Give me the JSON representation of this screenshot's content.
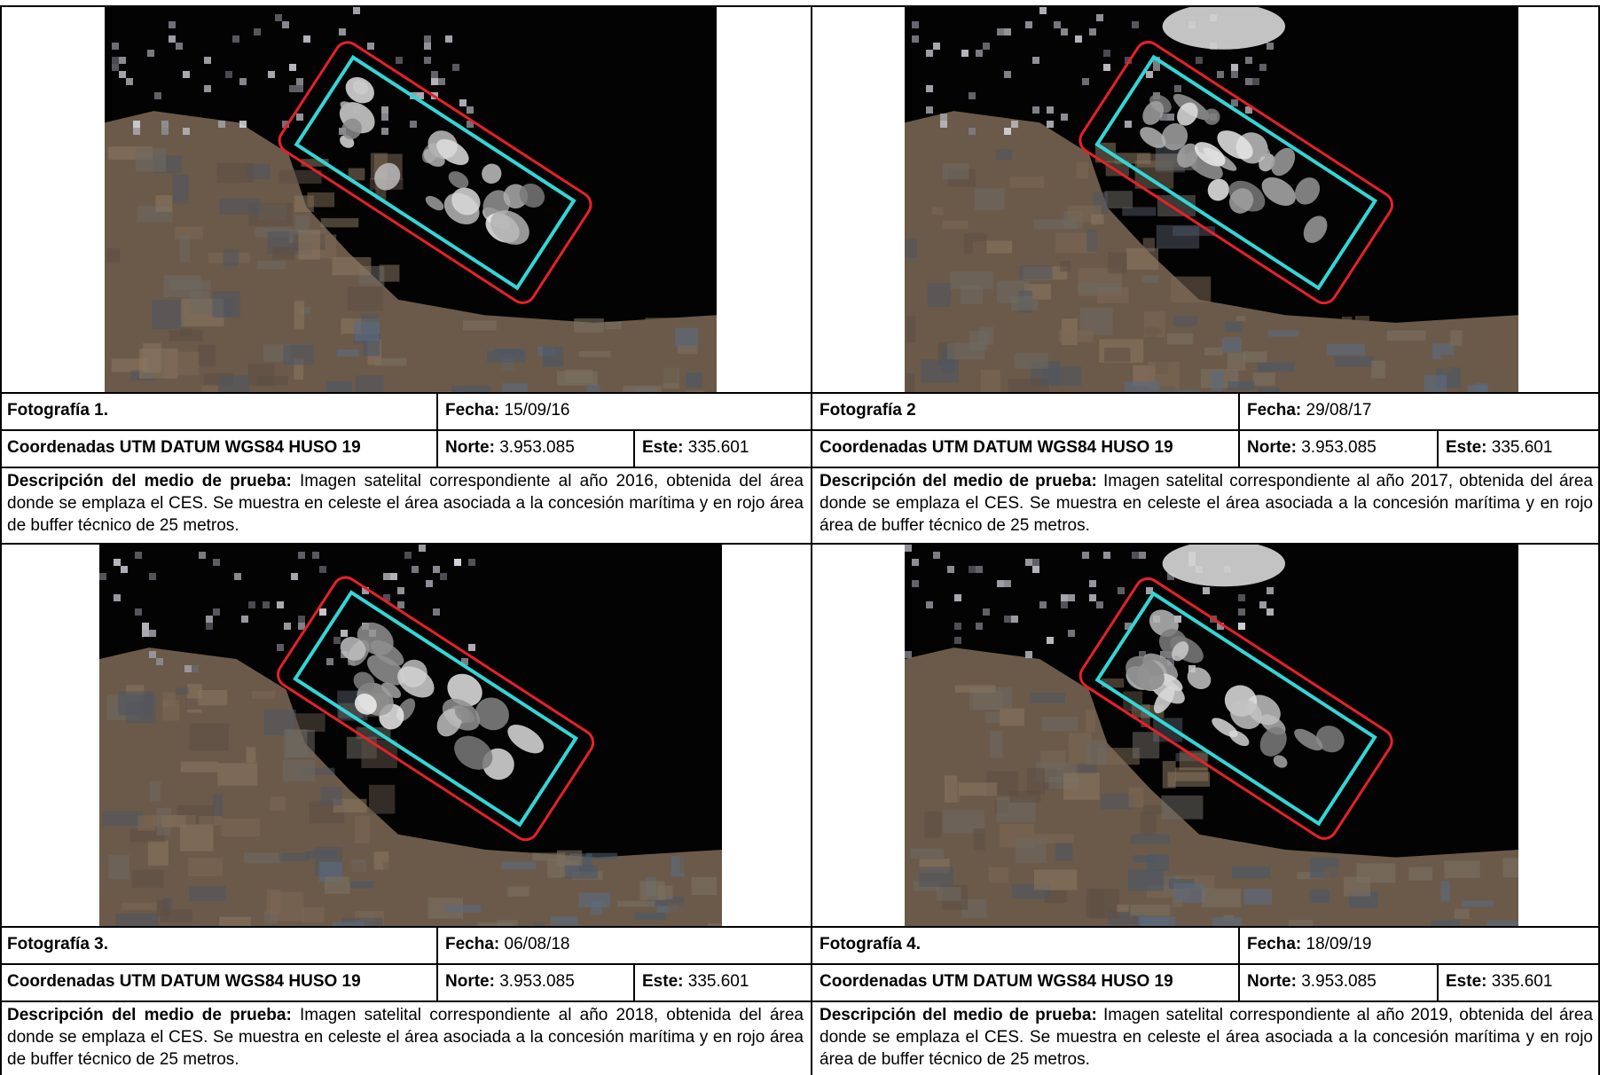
{
  "cards": [
    {
      "photo_label": "Fotografía 1.",
      "fecha_label": "Fecha:",
      "fecha_value": "15/09/16",
      "coords_label": "Coordenadas UTM DATUM WGS84 HUSO 19",
      "norte_label": "Norte:",
      "norte_value": "3.953.085",
      "este_label": "Este:",
      "este_value": "335.601",
      "desc_label": "Descripción del medio de prueba:",
      "desc_text": " Imagen satelital correspondiente al año 2016, obtenida del área donde se emplaza el CES. Se muestra en celeste el área asociada a la concesión marítima y en rojo área de buffer técnico de 25 metros.",
      "image": {
        "seed": 1,
        "buffer_color": "#e8202a",
        "concession_color": "#33d6d6"
      }
    },
    {
      "photo_label": "Fotografía 2",
      "fecha_label": "Fecha:",
      "fecha_value": "29/08/17",
      "coords_label": "Coordenadas UTM DATUM WGS84 HUSO 19",
      "norte_label": "Norte:",
      "norte_value": "3.953.085",
      "este_label": "Este:",
      "este_value": "335.601",
      "desc_label": "Descripción del medio de prueba:",
      "desc_text": " Imagen satelital correspondiente al año 2017, obtenida del área donde se emplaza el CES. Se muestra en celeste el área asociada a la concesión marítima y en rojo área de buffer técnico de 25 metros.",
      "image": {
        "seed": 2,
        "buffer_color": "#e8202a",
        "concession_color": "#33d6d6"
      }
    },
    {
      "photo_label": "Fotografía 3.",
      "fecha_label": "Fecha:",
      "fecha_value": "06/08/18",
      "coords_label": "Coordenadas UTM DATUM WGS84 HUSO 19",
      "norte_label": "Norte:",
      "norte_value": "3.953.085",
      "este_label": "Este:",
      "este_value": "335.601",
      "desc_label": "Descripción del medio de prueba:",
      "desc_text": " Imagen satelital correspondiente al año 2018, obtenida del área donde se emplaza el CES. Se muestra en celeste el área asociada a la concesión marítima y en rojo área de buffer técnico de 25 metros.",
      "image": {
        "seed": 3,
        "buffer_color": "#e8202a",
        "concession_color": "#33d6d6"
      }
    },
    {
      "photo_label": "Fotografía 4.",
      "fecha_label": "Fecha:",
      "fecha_value": "18/09/19",
      "coords_label": "Coordenadas UTM DATUM WGS84 HUSO 19",
      "norte_label": "Norte:",
      "norte_value": "3.953.085",
      "este_label": "Este:",
      "este_value": "335.601",
      "desc_label": "Descripción del medio de prueba:",
      "desc_text": " Imagen satelital correspondiente al año 2019, obtenida del área donde se emplaza el CES. Se muestra en celeste el área asociada a la concesión marítima y en rojo área de buffer técnico de 25 metros.",
      "image": {
        "seed": 4,
        "buffer_color": "#e8202a",
        "concession_color": "#33d6d6"
      }
    }
  ]
}
